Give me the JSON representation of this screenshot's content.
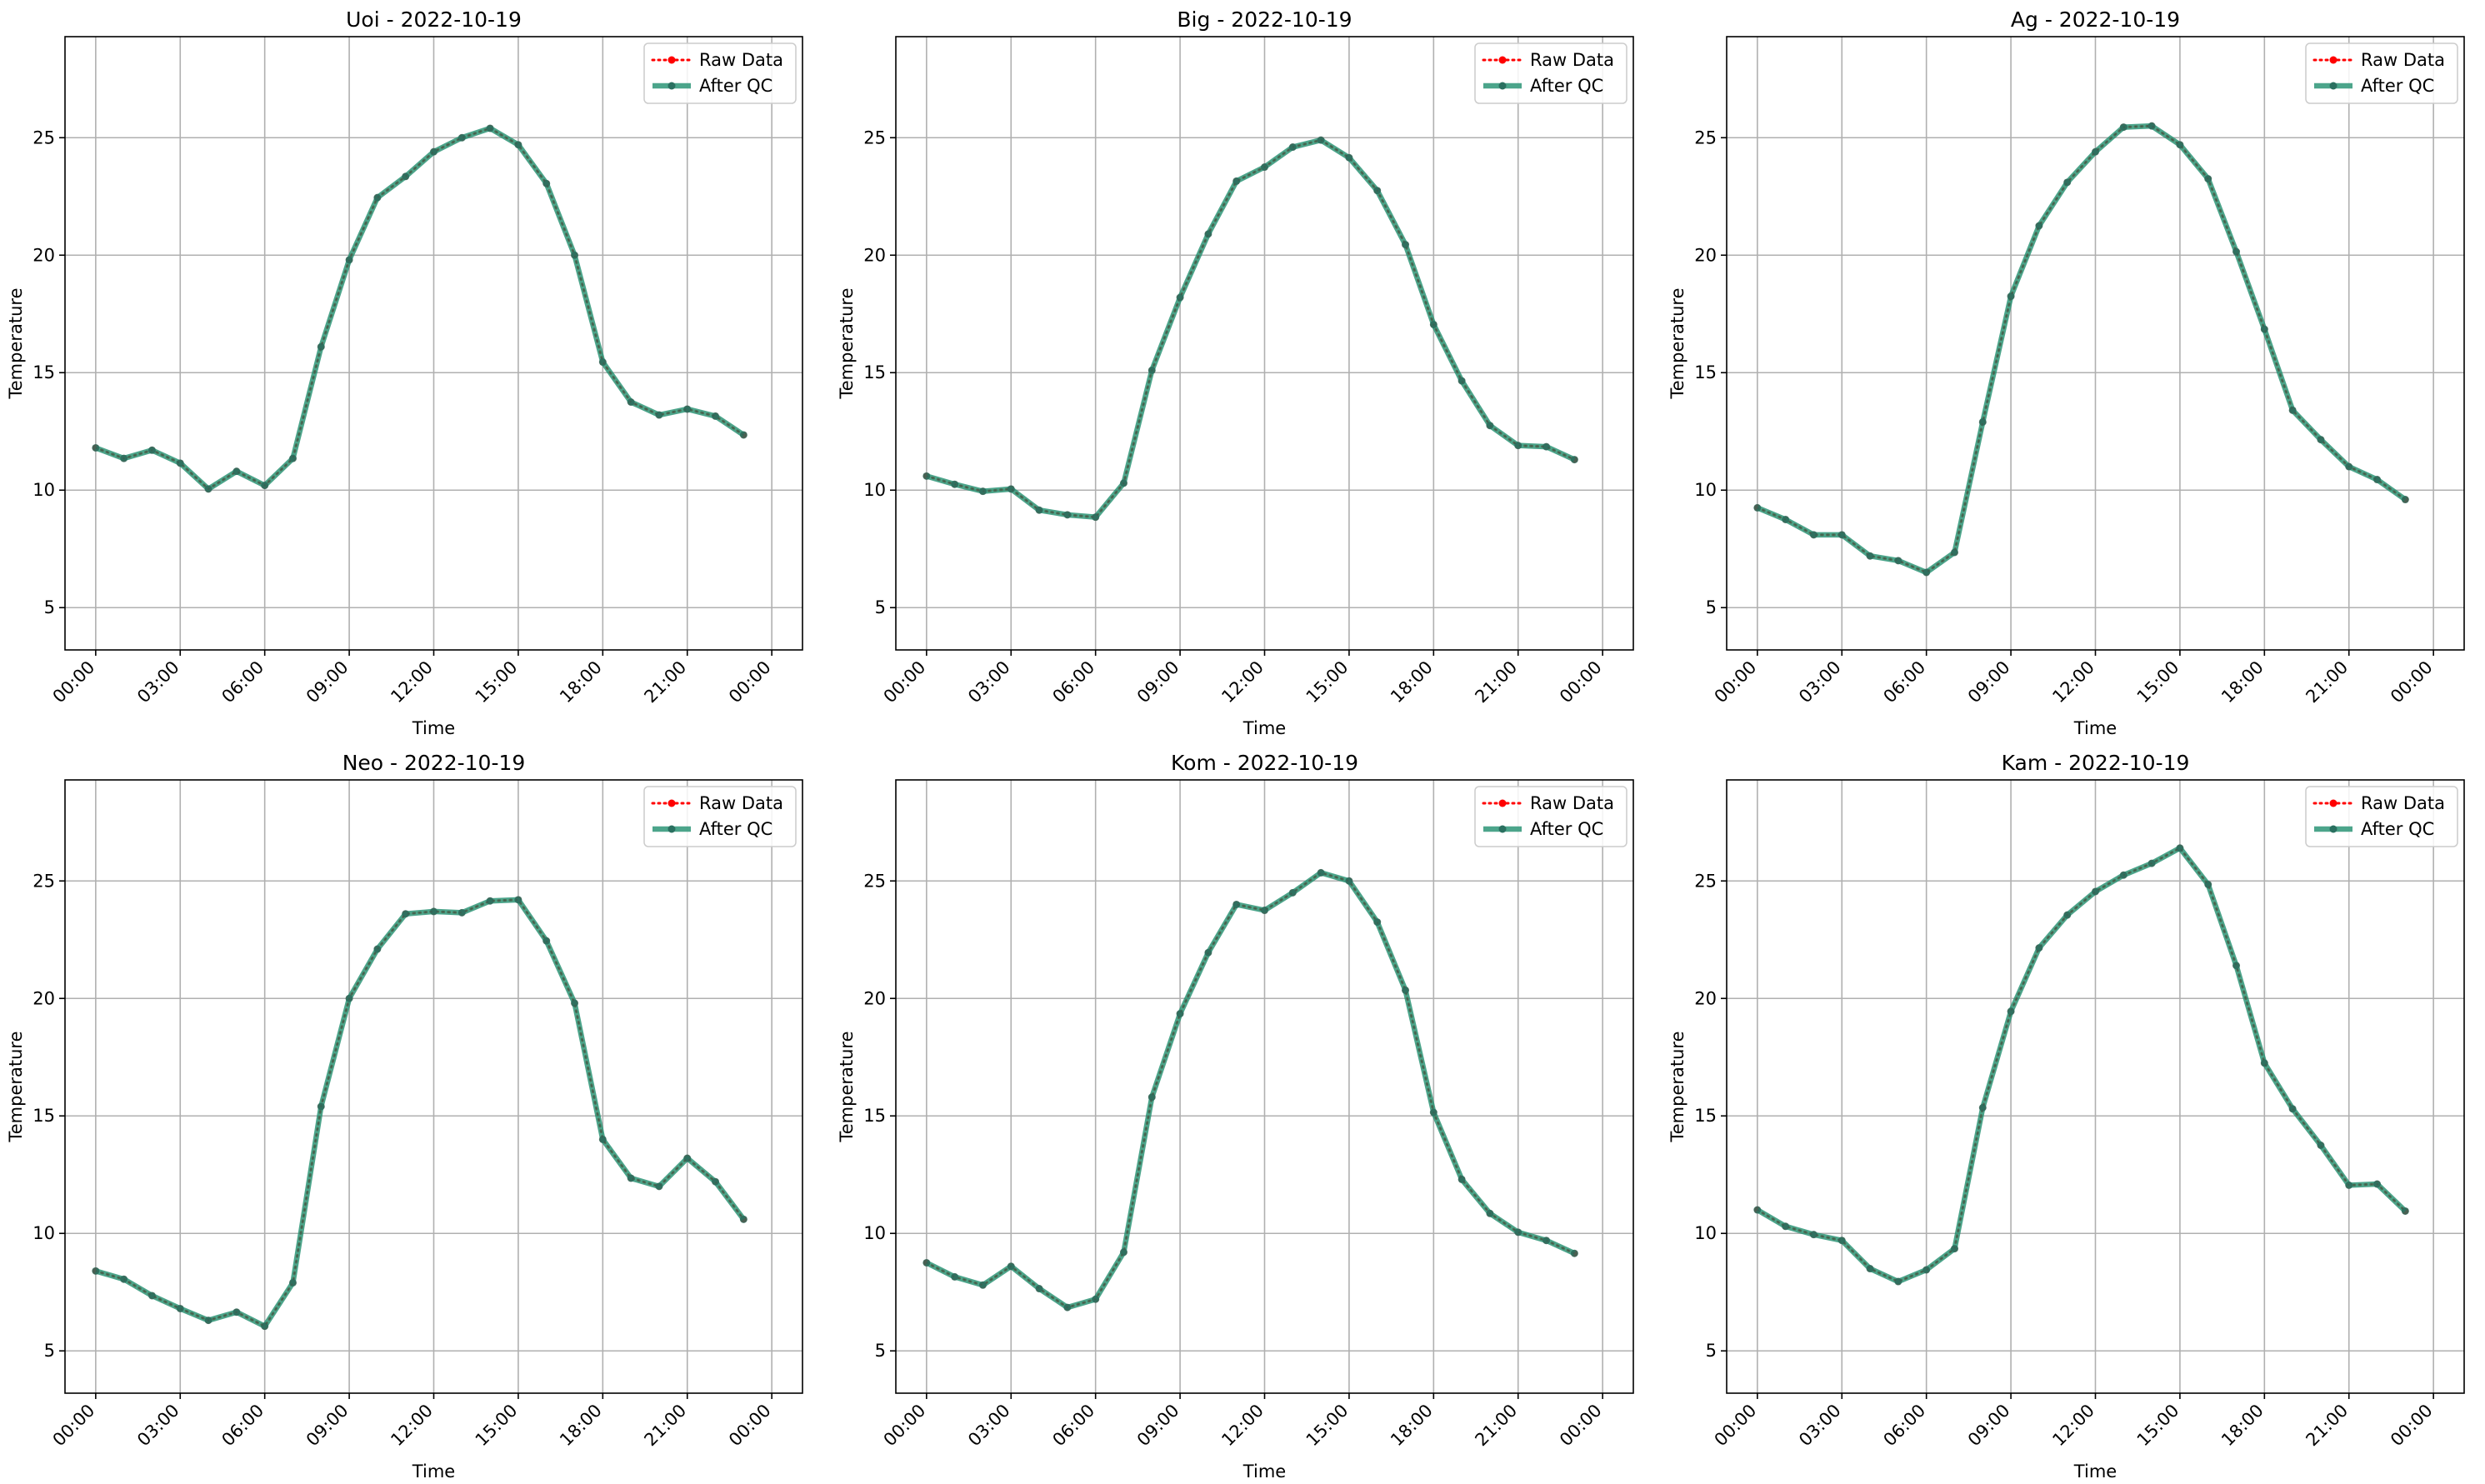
{
  "chart_data": [
    {
      "type": "line",
      "title": "Uoi - 2022-10-19",
      "xlabel": "Time",
      "ylabel": "Temperature",
      "x_ticks": [
        "00:00",
        "03:00",
        "06:00",
        "09:00",
        "12:00",
        "15:00",
        "18:00",
        "21:00",
        "00:00"
      ],
      "y_ticks": [
        "5",
        "10",
        "15",
        "20",
        "25"
      ],
      "ylim": [
        3.2,
        29.3
      ],
      "grid": true,
      "legend_position": "top-right",
      "x": [
        "00:00",
        "01:00",
        "02:00",
        "03:00",
        "04:00",
        "05:00",
        "06:00",
        "07:00",
        "08:00",
        "09:00",
        "10:00",
        "11:00",
        "12:00",
        "13:00",
        "14:00",
        "15:00",
        "16:00",
        "17:00",
        "18:00",
        "19:00",
        "20:00",
        "21:00",
        "22:00",
        "23:00"
      ],
      "series": [
        {
          "name": "Raw Data",
          "values": [
            11.8,
            11.35,
            11.7,
            11.15,
            10.05,
            10.8,
            10.2,
            11.35,
            16.1,
            19.8,
            22.45,
            23.35,
            24.4,
            25.0,
            25.4,
            24.7,
            23.05,
            20.0,
            15.45,
            13.75,
            13.2,
            13.45,
            13.15,
            12.35
          ]
        },
        {
          "name": "After QC",
          "values": [
            11.8,
            11.35,
            11.7,
            11.15,
            10.05,
            10.8,
            10.2,
            11.35,
            16.1,
            19.8,
            22.45,
            23.35,
            24.4,
            25.0,
            25.4,
            24.7,
            23.05,
            20.0,
            15.45,
            13.75,
            13.2,
            13.45,
            13.15,
            12.35
          ]
        }
      ]
    },
    {
      "type": "line",
      "title": "Big - 2022-10-19",
      "xlabel": "Time",
      "ylabel": "Temperature",
      "x_ticks": [
        "00:00",
        "03:00",
        "06:00",
        "09:00",
        "12:00",
        "15:00",
        "18:00",
        "21:00",
        "00:00"
      ],
      "y_ticks": [
        "5",
        "10",
        "15",
        "20",
        "25"
      ],
      "ylim": [
        3.2,
        29.3
      ],
      "grid": true,
      "legend_position": "top-right",
      "x": [
        "00:00",
        "01:00",
        "02:00",
        "03:00",
        "04:00",
        "05:00",
        "06:00",
        "07:00",
        "08:00",
        "09:00",
        "10:00",
        "11:00",
        "12:00",
        "13:00",
        "14:00",
        "15:00",
        "16:00",
        "17:00",
        "18:00",
        "19:00",
        "20:00",
        "21:00",
        "22:00",
        "23:00"
      ],
      "series": [
        {
          "name": "Raw Data",
          "values": [
            10.6,
            10.25,
            9.95,
            10.05,
            9.15,
            8.95,
            8.85,
            10.3,
            15.1,
            18.2,
            20.9,
            23.15,
            23.75,
            24.6,
            24.9,
            24.15,
            22.75,
            20.45,
            17.05,
            14.65,
            12.75,
            11.9,
            11.85,
            11.3
          ]
        },
        {
          "name": "After QC",
          "values": [
            10.6,
            10.25,
            9.95,
            10.05,
            9.15,
            8.95,
            8.85,
            10.3,
            15.1,
            18.2,
            20.9,
            23.15,
            23.75,
            24.6,
            24.9,
            24.15,
            22.75,
            20.45,
            17.05,
            14.65,
            12.75,
            11.9,
            11.85,
            11.3
          ]
        }
      ]
    },
    {
      "type": "line",
      "title": "Ag - 2022-10-19",
      "xlabel": "Time",
      "ylabel": "Temperature",
      "x_ticks": [
        "00:00",
        "03:00",
        "06:00",
        "09:00",
        "12:00",
        "15:00",
        "18:00",
        "21:00",
        "00:00"
      ],
      "y_ticks": [
        "5",
        "10",
        "15",
        "20",
        "25"
      ],
      "ylim": [
        3.2,
        29.3
      ],
      "grid": true,
      "legend_position": "top-right",
      "x": [
        "00:00",
        "01:00",
        "02:00",
        "03:00",
        "04:00",
        "05:00",
        "06:00",
        "07:00",
        "08:00",
        "09:00",
        "10:00",
        "11:00",
        "12:00",
        "13:00",
        "14:00",
        "15:00",
        "16:00",
        "17:00",
        "18:00",
        "19:00",
        "20:00",
        "21:00",
        "22:00",
        "23:00"
      ],
      "series": [
        {
          "name": "Raw Data",
          "values": [
            9.25,
            8.75,
            8.1,
            8.1,
            7.2,
            7.0,
            6.5,
            7.35,
            12.9,
            18.25,
            21.25,
            23.1,
            24.4,
            25.45,
            25.5,
            24.7,
            23.25,
            20.15,
            16.85,
            13.4,
            12.15,
            11.0,
            10.45,
            9.6
          ]
        },
        {
          "name": "After QC",
          "values": [
            9.25,
            8.75,
            8.1,
            8.1,
            7.2,
            7.0,
            6.5,
            7.35,
            12.9,
            18.25,
            21.25,
            23.1,
            24.4,
            25.45,
            25.5,
            24.7,
            23.25,
            20.15,
            16.85,
            13.4,
            12.15,
            11.0,
            10.45,
            9.6
          ]
        }
      ]
    },
    {
      "type": "line",
      "title": "Neo - 2022-10-19",
      "xlabel": "Time",
      "ylabel": "Temperature",
      "x_ticks": [
        "00:00",
        "03:00",
        "06:00",
        "09:00",
        "12:00",
        "15:00",
        "18:00",
        "21:00",
        "00:00"
      ],
      "y_ticks": [
        "5",
        "10",
        "15",
        "20",
        "25"
      ],
      "ylim": [
        3.2,
        29.3
      ],
      "grid": true,
      "legend_position": "top-right",
      "x": [
        "00:00",
        "01:00",
        "02:00",
        "03:00",
        "04:00",
        "05:00",
        "06:00",
        "07:00",
        "08:00",
        "09:00",
        "10:00",
        "11:00",
        "12:00",
        "13:00",
        "14:00",
        "15:00",
        "16:00",
        "17:00",
        "18:00",
        "19:00",
        "20:00",
        "21:00",
        "22:00",
        "23:00"
      ],
      "series": [
        {
          "name": "Raw Data",
          "values": [
            8.4,
            8.05,
            7.35,
            6.8,
            6.3,
            6.65,
            6.05,
            7.9,
            15.4,
            20.0,
            22.1,
            23.6,
            23.7,
            23.65,
            24.15,
            24.2,
            22.45,
            19.8,
            14.0,
            12.35,
            12.0,
            13.2,
            12.2,
            10.6
          ]
        },
        {
          "name": "After QC",
          "values": [
            8.4,
            8.05,
            7.35,
            6.8,
            6.3,
            6.65,
            6.05,
            7.9,
            15.4,
            20.0,
            22.1,
            23.6,
            23.7,
            23.65,
            24.15,
            24.2,
            22.45,
            19.8,
            14.0,
            12.35,
            12.0,
            13.2,
            12.2,
            10.6
          ]
        }
      ]
    },
    {
      "type": "line",
      "title": "Kom - 2022-10-19",
      "xlabel": "Time",
      "ylabel": "Temperature",
      "x_ticks": [
        "00:00",
        "03:00",
        "06:00",
        "09:00",
        "12:00",
        "15:00",
        "18:00",
        "21:00",
        "00:00"
      ],
      "y_ticks": [
        "5",
        "10",
        "15",
        "20",
        "25"
      ],
      "ylim": [
        3.2,
        29.3
      ],
      "grid": true,
      "legend_position": "top-right",
      "x": [
        "00:00",
        "01:00",
        "02:00",
        "03:00",
        "04:00",
        "05:00",
        "06:00",
        "07:00",
        "08:00",
        "09:00",
        "10:00",
        "11:00",
        "12:00",
        "13:00",
        "14:00",
        "15:00",
        "16:00",
        "17:00",
        "18:00",
        "19:00",
        "20:00",
        "21:00",
        "22:00",
        "23:00"
      ],
      "series": [
        {
          "name": "Raw Data",
          "values": [
            8.75,
            8.15,
            7.8,
            8.6,
            7.65,
            6.85,
            7.2,
            9.2,
            15.8,
            19.35,
            21.95,
            24.0,
            23.75,
            24.5,
            25.35,
            25.0,
            23.25,
            20.35,
            15.15,
            12.3,
            10.85,
            10.05,
            9.7,
            9.15
          ]
        },
        {
          "name": "After QC",
          "values": [
            8.75,
            8.15,
            7.8,
            8.6,
            7.65,
            6.85,
            7.2,
            9.2,
            15.8,
            19.35,
            21.95,
            24.0,
            23.75,
            24.5,
            25.35,
            25.0,
            23.25,
            20.35,
            15.15,
            12.3,
            10.85,
            10.05,
            9.7,
            9.15
          ]
        }
      ]
    },
    {
      "type": "line",
      "title": "Kam - 2022-10-19",
      "xlabel": "Time",
      "ylabel": "Temperature",
      "x_ticks": [
        "00:00",
        "03:00",
        "06:00",
        "09:00",
        "12:00",
        "15:00",
        "18:00",
        "21:00",
        "00:00"
      ],
      "y_ticks": [
        "5",
        "10",
        "15",
        "20",
        "25"
      ],
      "ylim": [
        3.2,
        29.3
      ],
      "grid": true,
      "legend_position": "top-right",
      "x": [
        "00:00",
        "01:00",
        "02:00",
        "03:00",
        "04:00",
        "05:00",
        "06:00",
        "07:00",
        "08:00",
        "09:00",
        "10:00",
        "11:00",
        "12:00",
        "13:00",
        "14:00",
        "15:00",
        "16:00",
        "17:00",
        "18:00",
        "19:00",
        "20:00",
        "21:00",
        "22:00",
        "23:00"
      ],
      "series": [
        {
          "name": "Raw Data",
          "values": [
            11.0,
            10.3,
            9.95,
            9.7,
            8.5,
            7.95,
            8.45,
            9.35,
            15.35,
            19.45,
            22.15,
            23.55,
            24.55,
            25.25,
            25.75,
            26.4,
            24.85,
            21.4,
            17.25,
            15.3,
            13.75,
            12.05,
            12.1,
            10.95
          ]
        },
        {
          "name": "After QC",
          "values": [
            11.0,
            10.3,
            9.95,
            9.7,
            8.5,
            7.95,
            8.45,
            9.35,
            15.35,
            19.45,
            22.15,
            23.55,
            24.55,
            25.25,
            25.75,
            26.4,
            24.85,
            21.4,
            17.25,
            15.3,
            13.75,
            12.05,
            12.1,
            10.95
          ]
        }
      ]
    }
  ],
  "colors": {
    "raw_data": "#ff0000",
    "after_qc": "#1f8f6e",
    "marker": "#2a7060",
    "grid": "#b0b0b0",
    "axes": "#000000",
    "legend_border": "#cccccc"
  }
}
